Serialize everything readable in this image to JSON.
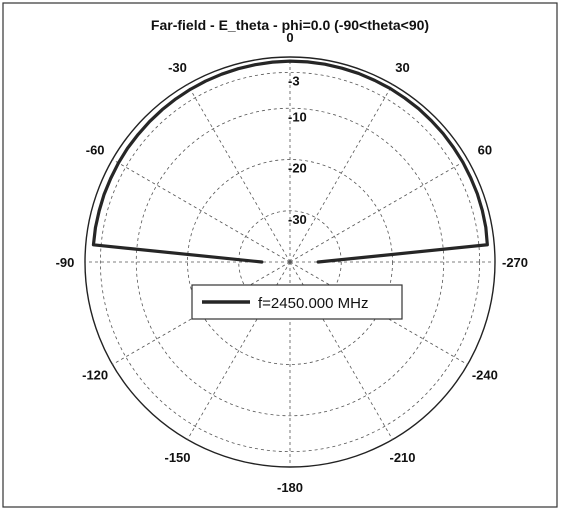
{
  "chart_data": {
    "type": "polar",
    "title": "Far-field - E_theta - phi=0.0 (-90<theta<90)",
    "angle_unit": "deg",
    "angle_zero": "top",
    "angle_direction": "clockwise",
    "radial_unit": "dB",
    "radial_ticks": [
      0,
      -3,
      -10,
      -20,
      -30
    ],
    "radial_tick_labels": [
      "-3",
      "-10",
      "-20",
      "-30"
    ],
    "angle_ticks": [
      0,
      30,
      60,
      -270,
      -240,
      -210,
      -180,
      -150,
      -120,
      -90,
      -60,
      -30
    ],
    "angle_tick_labels": [
      "0",
      "30",
      "60",
      "-270",
      "-240",
      "-210",
      "-180",
      "-150",
      "-120",
      "-90",
      "-60",
      "-30"
    ],
    "grid": true,
    "legend_position": "center",
    "series": [
      {
        "name": "f=2450.000 MHz",
        "color": "#262626",
        "theta": [
          -90,
          -85,
          -80,
          -75,
          -70,
          -65,
          -60,
          -55,
          -50,
          -45,
          -40,
          -35,
          -30,
          -25,
          -20,
          -15,
          -10,
          -5,
          0,
          5,
          10,
          15,
          20,
          25,
          30,
          35,
          40,
          45,
          50,
          55,
          60,
          65,
          70,
          75,
          80,
          85,
          90
        ],
        "gain_db": [
          -34.5,
          -1.5,
          -1.45,
          -1.45,
          -1.4,
          -1.4,
          -1.35,
          -1.3,
          -1.3,
          -1.25,
          -1.2,
          -1.15,
          -1.1,
          -1.05,
          -1.0,
          -0.95,
          -0.9,
          -0.85,
          -0.8,
          -0.8,
          -0.8,
          -0.85,
          -0.85,
          -0.9,
          -0.9,
          -0.95,
          -0.95,
          -1.0,
          -1.0,
          -1.05,
          -1.05,
          -1.1,
          -1.1,
          -1.15,
          -1.2,
          -1.35,
          -34.5
        ]
      }
    ]
  }
}
